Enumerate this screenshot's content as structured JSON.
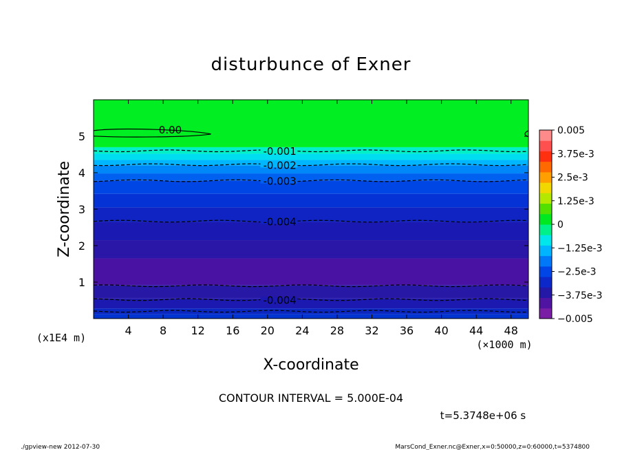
{
  "chart_data": {
    "type": "heatmap",
    "title": "disturbunce of Exner",
    "xlabel": "X-coordinate",
    "ylabel": "Z-coordinate",
    "x_unit": "(×1000 m)",
    "y_unit": "(x1E4 m)",
    "xlim": [
      0,
      50
    ],
    "ylim": [
      0,
      6
    ],
    "x_ticks": [
      "4",
      "8",
      "12",
      "16",
      "20",
      "24",
      "28",
      "32",
      "36",
      "40",
      "44",
      "48"
    ],
    "y_ticks": [
      "1",
      "2",
      "3",
      "4",
      "5"
    ],
    "bands": [
      {
        "z0": 0.0,
        "z1": 0.12,
        "color": "#0035d2"
      },
      {
        "z0": 0.12,
        "z1": 0.28,
        "color": "#0a27c2"
      },
      {
        "z0": 0.28,
        "z1": 0.55,
        "color": "#1b19b0"
      },
      {
        "z0": 0.55,
        "z1": 0.92,
        "color": "#2818a6"
      },
      {
        "z0": 0.92,
        "z1": 1.65,
        "color": "#4a12a2"
      },
      {
        "z0": 1.65,
        "z1": 2.15,
        "color": "#2a17a8"
      },
      {
        "z0": 2.15,
        "z1": 2.65,
        "color": "#1a1ab2"
      },
      {
        "z0": 2.65,
        "z1": 3.05,
        "color": "#0f24c2"
      },
      {
        "z0": 3.05,
        "z1": 3.42,
        "color": "#0532d4"
      },
      {
        "z0": 3.42,
        "z1": 3.78,
        "color": "#0046e4"
      },
      {
        "z0": 3.78,
        "z1": 3.98,
        "color": "#0060f0"
      },
      {
        "z0": 3.98,
        "z1": 4.2,
        "color": "#0088f8"
      },
      {
        "z0": 4.2,
        "z1": 4.35,
        "color": "#00b6ff"
      },
      {
        "z0": 4.35,
        "z1": 4.52,
        "color": "#00dcf0"
      },
      {
        "z0": 4.52,
        "z1": 4.7,
        "color": "#00f0c8"
      },
      {
        "z0": 4.7,
        "z1": 6.0,
        "color": "#00ee22"
      }
    ],
    "contours": [
      {
        "z": 4.6,
        "label": "-0.001",
        "label_x": 19.5,
        "style": "dashed"
      },
      {
        "z": 4.22,
        "label": "-0.002",
        "label_x": 19.5,
        "style": "dashed"
      },
      {
        "z": 3.78,
        "label": "-0.003",
        "label_x": 19.5,
        "style": "dashed"
      },
      {
        "z": 2.67,
        "label": "-0.004",
        "label_x": 19.5,
        "style": "dashed"
      },
      {
        "z": 0.9,
        "label": "",
        "label_x": 0,
        "style": "dashed"
      },
      {
        "z": 0.52,
        "label": "-0.004",
        "label_x": 19.5,
        "style": "dashed"
      },
      {
        "z": 0.2,
        "label": "",
        "label_x": 0,
        "style": "dashed"
      }
    ],
    "zero_contour": {
      "label": "0.00",
      "x_end": 13.5,
      "z": 5.06,
      "label_x": 7.5
    },
    "colorbar": {
      "range": [
        -0.005,
        0.005
      ],
      "colors": [
        "#7a1ea6",
        "#5014a2",
        "#2418a6",
        "#0c28c8",
        "#0046e6",
        "#0078f8",
        "#00b4ff",
        "#00e6ea",
        "#00f08a",
        "#00e820",
        "#52e000",
        "#b4e800",
        "#f0d800",
        "#ffa000",
        "#ff6a00",
        "#ff3010",
        "#ff5050",
        "#ff8a8a"
      ],
      "labels": [
        "0.005",
        "3.75e-3",
        "2.5e-3",
        "1.25e-3",
        "0",
        "−1.25e-3",
        "−2.5e-3",
        "−3.75e-3",
        "−0.005"
      ]
    }
  },
  "footer": {
    "contour_interval": "CONTOUR INTERVAL = 5.000E-04",
    "time": "t=5.3748e+06 s",
    "program": "./gpview-new   2012-07-30",
    "source": "MarsCond_Exner.nc@Exner,x=0:50000,z=0:60000,t=5374800"
  }
}
